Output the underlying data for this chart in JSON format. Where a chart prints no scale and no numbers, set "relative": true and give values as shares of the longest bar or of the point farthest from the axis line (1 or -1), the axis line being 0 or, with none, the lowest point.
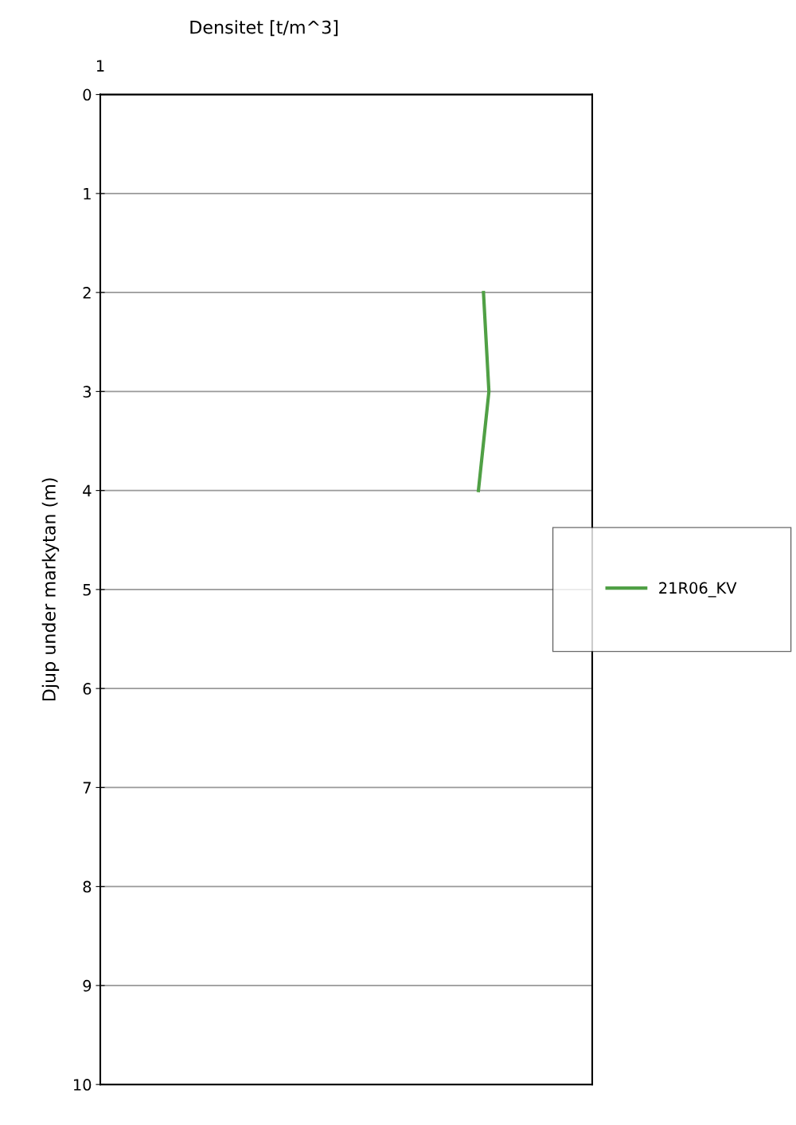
{
  "chart_data": {
    "type": "line",
    "title": "Densitet [t/m^3]",
    "ylabel": "Djup under markytan (m)",
    "relative": true,
    "orientation": "horizontal",
    "x": [
      2,
      3,
      4
    ],
    "series": [
      {
        "name": "21R06_KV",
        "color": "#50a045",
        "values": [
          0.986,
          1,
          0.973
        ]
      }
    ],
    "ylim": [
      10,
      0
    ],
    "yticks": [
      0,
      1,
      2,
      3,
      4,
      5,
      6,
      7,
      8,
      9,
      10
    ],
    "grid": "y",
    "legend": "right",
    "marker": "none",
    "line_style": "solid",
    "annotations": [
      "1"
    ]
  }
}
